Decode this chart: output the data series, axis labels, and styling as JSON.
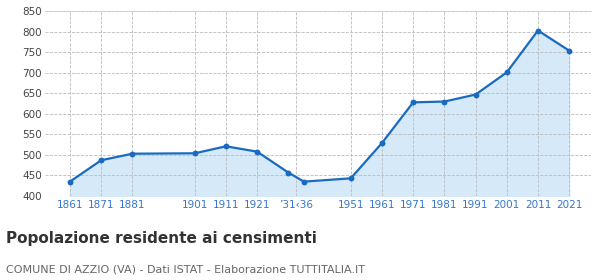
{
  "years": [
    1861,
    1871,
    1881,
    1901,
    1911,
    1921,
    1931,
    1936,
    1951,
    1961,
    1971,
    1981,
    1991,
    2001,
    2011,
    2021
  ],
  "population": [
    435,
    487,
    503,
    504,
    521,
    508,
    457,
    435,
    443,
    529,
    628,
    630,
    647,
    701,
    803,
    754
  ],
  "xlim_left": 1853,
  "xlim_right": 2028,
  "ylim": [
    400,
    850
  ],
  "yticks": [
    400,
    450,
    500,
    550,
    600,
    650,
    700,
    750,
    800,
    850
  ],
  "xtick_positions": [
    1861,
    1871,
    1881,
    1901,
    1911,
    1921,
    1933.5,
    1951,
    1961,
    1971,
    1981,
    1991,
    2001,
    2011,
    2021
  ],
  "xtick_labels": [
    "1861",
    "1871",
    "1881",
    "1901",
    "1911",
    "1921",
    "’31‹36",
    "1951",
    "1961",
    "1971",
    "1981",
    "1991",
    "2001",
    "2011",
    "2021"
  ],
  "line_color": "#1a6bbf",
  "fill_color": "#d6e9f8",
  "marker_color": "#1a6bbf",
  "grid_color": "#bbbbbb",
  "bg_color": "#ffffff",
  "title": "Popolazione residente ai censimenti",
  "subtitle": "COMUNE DI AZZIO (VA) - Dati ISTAT - Elaborazione TUTTITALIA.IT",
  "title_fontsize": 11,
  "subtitle_fontsize": 8,
  "tick_label_color": "#3377cc"
}
